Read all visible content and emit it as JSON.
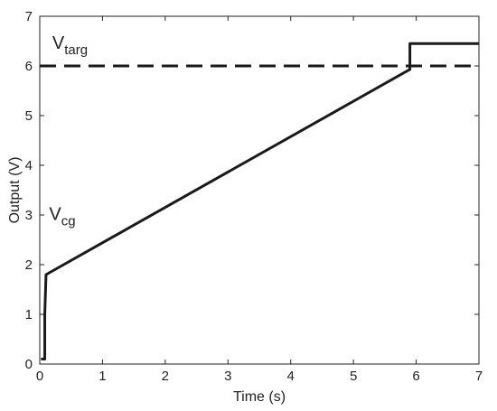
{
  "chart_data": {
    "type": "line",
    "xlabel": "Time (s)",
    "ylabel": "Output (V)",
    "xlim": [
      0,
      7
    ],
    "ylim": [
      0,
      7
    ],
    "xticks": [
      0,
      1,
      2,
      3,
      4,
      5,
      6,
      7
    ],
    "yticks": [
      0,
      1,
      2,
      3,
      4,
      5,
      6,
      7
    ],
    "grid": false,
    "series": [
      {
        "style": "solid",
        "color": "#1a1a1a",
        "x": [
          0.02,
          0.08,
          0.08,
          0.1,
          5.9,
          5.9,
          7.0
        ],
        "y": [
          0.1,
          0.1,
          1.0,
          1.8,
          5.93,
          6.45,
          6.45
        ]
      },
      {
        "style": "dashed",
        "color": "#1a1a1a",
        "x": [
          0,
          7
        ],
        "y": [
          6.0,
          6.0
        ]
      }
    ],
    "annotations": [
      {
        "main": "V",
        "sub": "targ",
        "x": 0.2,
        "y": 6.35
      },
      {
        "main": "V",
        "sub": "cg",
        "x": 0.15,
        "y": 2.9
      }
    ]
  }
}
